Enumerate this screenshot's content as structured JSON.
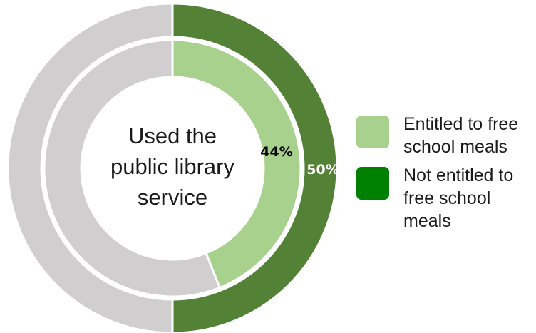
{
  "chart_data": {
    "type": "donut",
    "center_label": [
      "Used the",
      "public library",
      "service"
    ],
    "series": [
      {
        "name": "Not entitled to free school meals",
        "ring": "outer",
        "value": 50,
        "label": "50%",
        "color": "#538135",
        "remainder_color": "#d0cece",
        "label_color": "#ffffff"
      },
      {
        "name": "Entitled to free school meals",
        "ring": "inner",
        "value": 44,
        "label": "44%",
        "color": "#a9d18e",
        "remainder_color": "#d0cece",
        "label_color": "#000000"
      }
    ],
    "legend": {
      "placement": "right",
      "items": [
        {
          "label": "Entitled to free school meals",
          "color": "#a9d18e"
        },
        {
          "label": "Not entitled to free school meals",
          "color": "#008000"
        }
      ]
    }
  }
}
